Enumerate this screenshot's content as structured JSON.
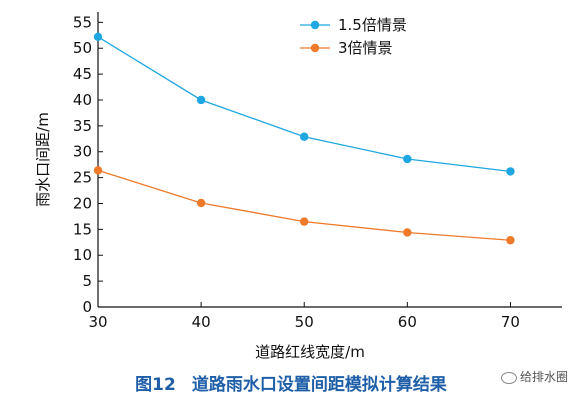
{
  "chart_data": {
    "type": "line",
    "x": [
      30,
      40,
      50,
      60,
      70
    ],
    "series": [
      {
        "name": "1.5倍情景",
        "color": "#1ea7e1",
        "values": [
          52.2,
          40.0,
          32.9,
          28.6,
          26.2
        ]
      },
      {
        "name": "3倍情景",
        "color": "#ee7a2a",
        "values": [
          26.4,
          20.1,
          16.5,
          14.4,
          12.9
        ]
      }
    ],
    "xlabel": "道路红线宽度/m",
    "ylabel": "雨水口间距/m",
    "xlim": [
      30,
      75
    ],
    "ylim": [
      0,
      57
    ],
    "xticks": [
      "30",
      "40",
      "50",
      "60",
      "70"
    ],
    "yticks": [
      "0",
      "5",
      "10",
      "15",
      "20",
      "25",
      "30",
      "35",
      "40",
      "45",
      "50",
      "55"
    ],
    "legend": "top-right",
    "grid": false
  },
  "caption": {
    "figure_number": "图12",
    "title": "道路雨水口设置间距模拟计算结果"
  },
  "watermark": "给排水圈"
}
